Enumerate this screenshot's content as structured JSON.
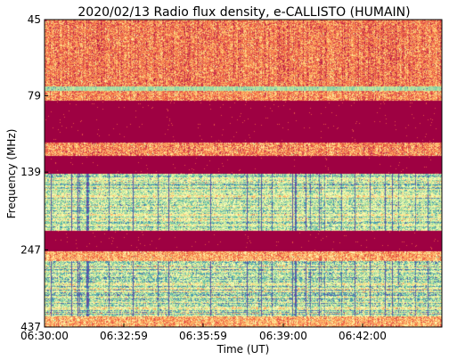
{
  "chart_data": {
    "type": "heatmap",
    "title": "2020/02/13  Radio flux density, e-CALLISTO (HUMAIN)",
    "xlabel": "Time (UT)",
    "ylabel": "Frequency (MHz)",
    "x_tick_labels": [
      "06:30:00",
      "06:32:59",
      "06:35:59",
      "06:39:00",
      "06:42:00"
    ],
    "y_tick_labels": [
      "45",
      "79",
      "139",
      "247",
      "437"
    ],
    "y_axis_direction": "frequency increases downward",
    "grid": false,
    "legend": "none",
    "colormap": {
      "name": "Spectral_r",
      "stops": [
        "#5e4fa2",
        "#3288bd",
        "#66c2a5",
        "#abdda4",
        "#e6f598",
        "#ffffbf",
        "#fee08b",
        "#fdae61",
        "#f46d43",
        "#d53e4f",
        "#9e0142"
      ]
    },
    "bands": [
      {
        "from_mhz": 45,
        "to_mhz": 73,
        "level": "low-mid, speckled"
      },
      {
        "from_mhz": 74,
        "to_mhz": 76,
        "level": "bright continuous line"
      },
      {
        "from_mhz": 76,
        "to_mhz": 82,
        "level": "mid, speckled"
      },
      {
        "from_mhz": 82,
        "to_mhz": 112,
        "level": "minimum (saturated dark band)"
      },
      {
        "from_mhz": 112,
        "to_mhz": 123,
        "level": "mid with bright bursts"
      },
      {
        "from_mhz": 123,
        "to_mhz": 141,
        "level": "minimum (saturated dark band)"
      },
      {
        "from_mhz": 141,
        "to_mhz": 214,
        "level": "high, many striations"
      },
      {
        "from_mhz": 214,
        "to_mhz": 250,
        "level": "minimum (saturated dark band)"
      },
      {
        "from_mhz": 250,
        "to_mhz": 268,
        "level": "mid-high"
      },
      {
        "from_mhz": 268,
        "to_mhz": 405,
        "level": "high with cyan peaks"
      },
      {
        "from_mhz": 405,
        "to_mhz": 437,
        "level": "mid"
      }
    ]
  }
}
